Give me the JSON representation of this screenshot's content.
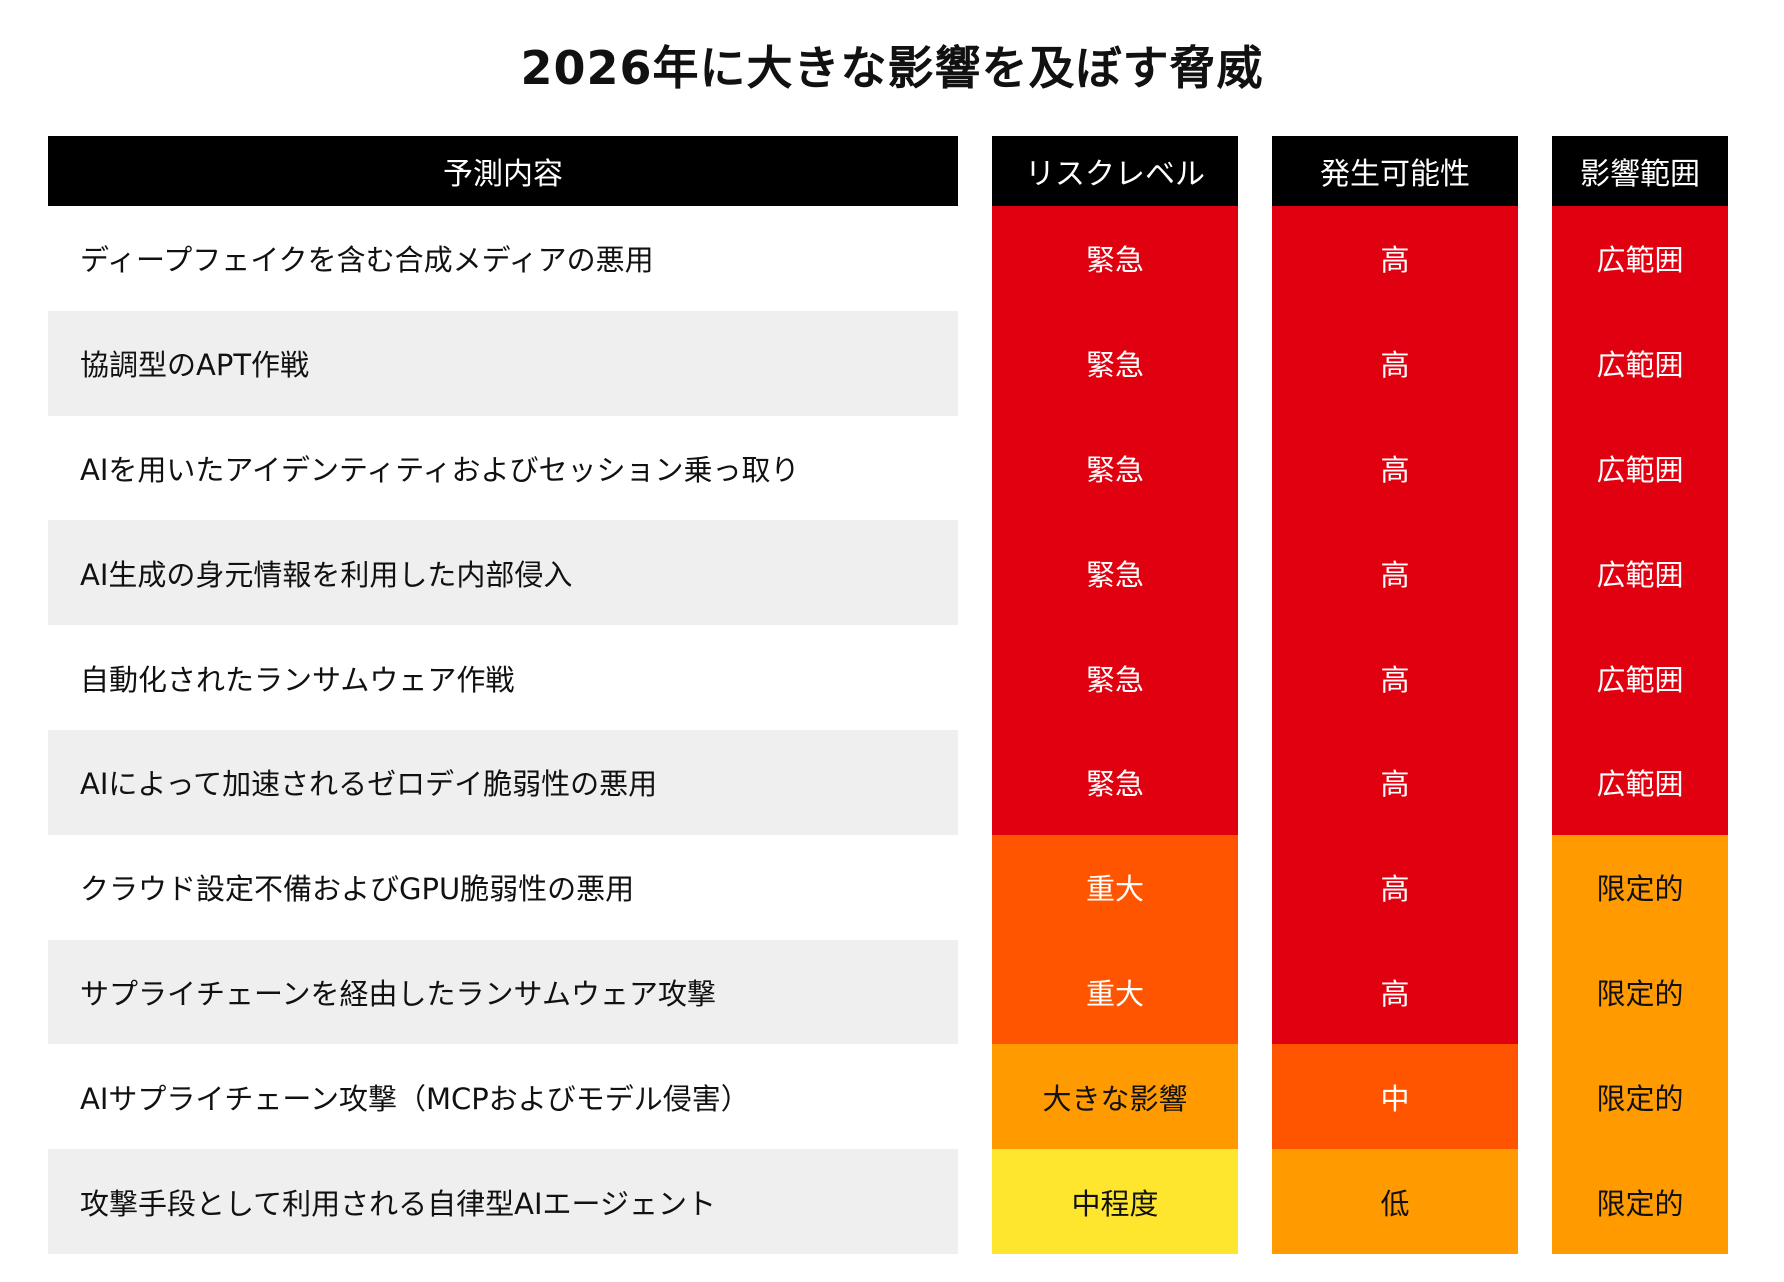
{
  "title": "2026年に大きな影響を及ぼす脅威",
  "colors": {
    "critical": "#e10010",
    "severe": "#ff5500",
    "orange": "#ff9a00",
    "yellow": "#ffe62e",
    "header_bg": "#000000",
    "row_alt": "#efefef"
  },
  "headers": {
    "prediction": "予測内容",
    "risk": "リスクレベル",
    "likelihood": "発生可能性",
    "scope": "影響範囲"
  },
  "rows": [
    {
      "prediction": "ディープフェイクを含む合成メディアの悪用",
      "risk": "緊急",
      "likelihood": "高",
      "scope": "広範囲"
    },
    {
      "prediction": "協調型のAPT作戦",
      "risk": "緊急",
      "likelihood": "高",
      "scope": "広範囲"
    },
    {
      "prediction": "AIを用いたアイデンティティおよびセッション乗っ取り",
      "risk": "緊急",
      "likelihood": "高",
      "scope": "広範囲"
    },
    {
      "prediction": "AI生成の身元情報を利用した内部侵入",
      "risk": "緊急",
      "likelihood": "高",
      "scope": "広範囲"
    },
    {
      "prediction": "自動化されたランサムウェア作戦",
      "risk": "緊急",
      "likelihood": "高",
      "scope": "広範囲"
    },
    {
      "prediction": "AIによって加速されるゼロデイ脆弱性の悪用",
      "risk": "緊急",
      "likelihood": "高",
      "scope": "広範囲"
    },
    {
      "prediction": "クラウド設定不備およびGPU脆弱性の悪用",
      "risk": "重大",
      "likelihood": "高",
      "scope": "限定的"
    },
    {
      "prediction": "サプライチェーンを経由したランサムウェア攻撃",
      "risk": "重大",
      "likelihood": "高",
      "scope": "限定的"
    },
    {
      "prediction": "AIサプライチェーン攻撃（MCPおよびモデル侵害）",
      "risk": "大きな影響",
      "likelihood": "中",
      "scope": "限定的"
    },
    {
      "prediction": "攻撃手段として利用される自律型AIエージェント",
      "risk": "中程度",
      "likelihood": "低",
      "scope": "限定的"
    }
  ]
}
